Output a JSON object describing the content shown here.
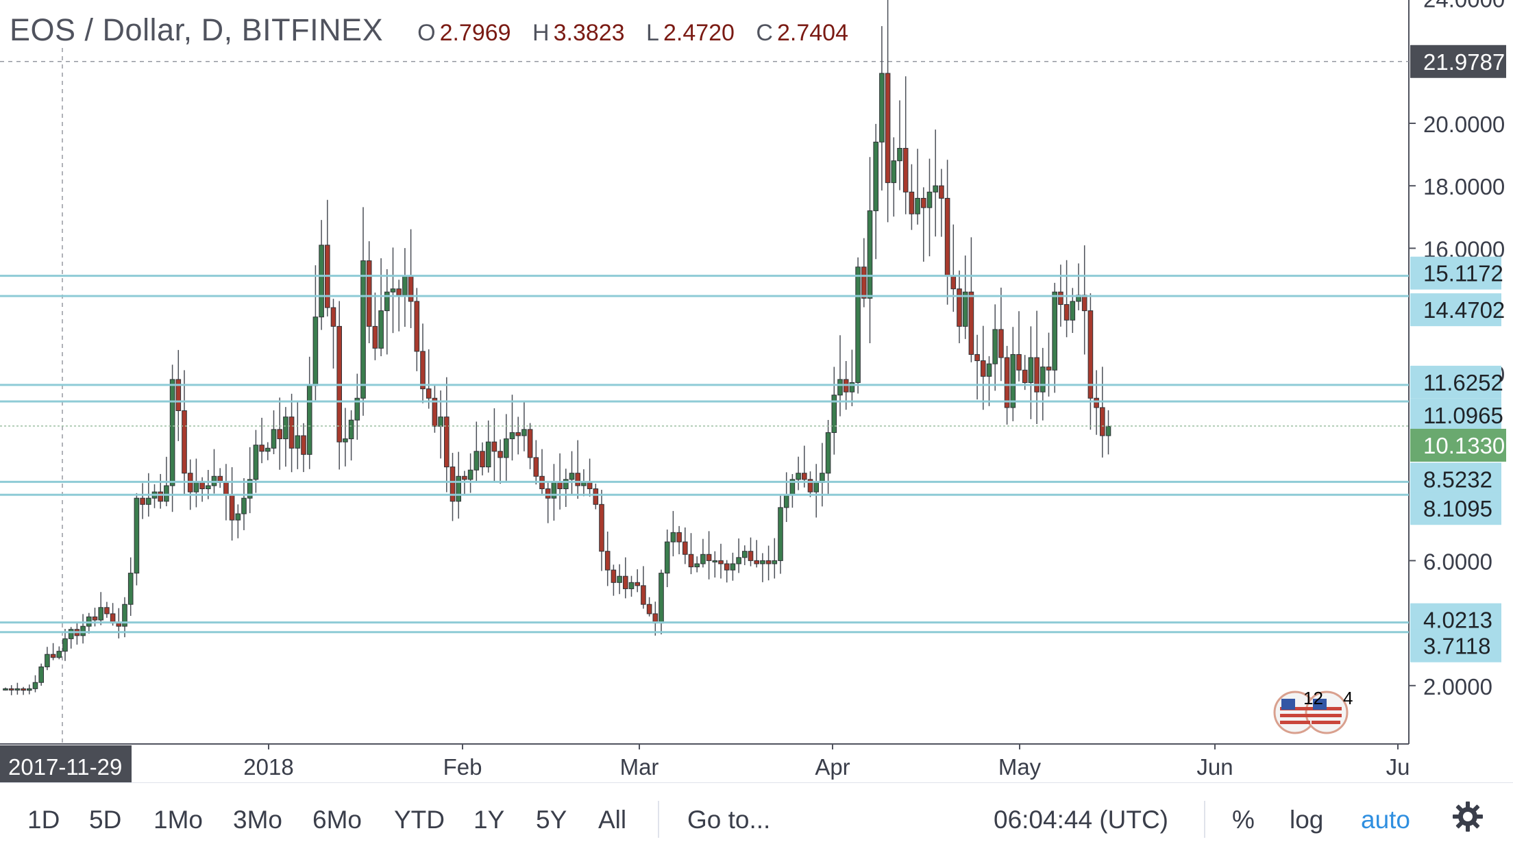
{
  "symbol": "EOS / Dollar, D, BITFINEX",
  "ohlc": [
    {
      "key": "O",
      "value": "2.7969"
    },
    {
      "key": "H",
      "value": "3.3823"
    },
    {
      "key": "L",
      "value": "2.4720"
    },
    {
      "key": "C",
      "value": "2.7404"
    }
  ],
  "price_axis": {
    "ticks": [
      "24.0000",
      "20.0000",
      "18.0000",
      "16.0000",
      "6.0000",
      "2.0000"
    ],
    "partially_hidden_tick": "12.0000",
    "crosshair_label": "21.9787",
    "current_price_label": "10.1330"
  },
  "horizontal_lines": [
    "15.1172",
    "14.4702",
    "11.6252",
    "11.0965",
    "8.5232",
    "8.1095",
    "4.0213",
    "3.7118"
  ],
  "time_axis": {
    "labels": [
      "2018",
      "Feb",
      "Mar",
      "Apr",
      "May",
      "Jun",
      "Ju"
    ],
    "crosshair_date": "2017-11-29"
  },
  "event_badges": {
    "count_a": "12",
    "count_b": "4"
  },
  "toolbar": {
    "ranges": [
      "1D",
      "5D",
      "1Mo",
      "3Mo",
      "6Mo",
      "YTD",
      "1Y",
      "5Y",
      "All"
    ],
    "goto": "Go to...",
    "time": "06:04:44 (UTC)",
    "percent": "%",
    "log": "log",
    "auto": "auto"
  },
  "colors": {
    "up_candle": "#3b7d4e",
    "down_candle": "#a83a2d",
    "level_line": "#8ecbd6",
    "level_label_bg": "#a9dcea",
    "crosshair_label_bg": "#4a4d55",
    "current_price_bg": "#6aa96f",
    "accent": "#2f8fe0"
  },
  "chart_data": {
    "type": "candlestick",
    "ylim": [
      0,
      24
    ],
    "y_ticks": [
      2,
      6,
      12,
      16,
      18,
      20,
      24
    ],
    "levels": [
      15.1172,
      14.4702,
      11.6252,
      11.0965,
      8.5232,
      8.1095,
      4.0213,
      3.7118
    ],
    "current_price": 10.133,
    "crosshair_price": 21.9787,
    "x_labels": [
      "2018",
      "Feb",
      "Mar",
      "Apr",
      "May",
      "Jun",
      "Ju"
    ],
    "start_date": "2017-11-29",
    "closes": [
      1.9,
      1.88,
      1.9,
      1.85,
      1.9,
      2.1,
      2.6,
      3.0,
      2.9,
      3.1,
      3.5,
      3.8,
      3.6,
      3.9,
      4.2,
      4.1,
      4.5,
      4.3,
      4.0,
      3.9,
      4.6,
      5.6,
      8.0,
      7.8,
      8.0,
      8.2,
      7.9,
      8.4,
      11.8,
      10.8,
      8.8,
      8.2,
      8.5,
      8.3,
      8.4,
      8.7,
      8.5,
      8.1,
      7.3,
      7.5,
      8.0,
      8.6,
      9.7,
      9.5,
      9.6,
      10.2,
      9.9,
      10.6,
      9.6,
      10.0,
      9.4,
      11.6,
      13.8,
      16.1,
      14.1,
      13.5,
      9.8,
      9.9,
      10.5,
      11.2,
      15.6,
      13.5,
      12.8,
      14.0,
      14.6,
      14.7,
      14.5,
      15.1,
      14.3,
      12.7,
      11.5,
      11.2,
      10.3,
      10.6,
      9.0,
      7.9,
      8.7,
      8.6,
      8.9,
      9.5,
      9.0,
      9.8,
      9.5,
      9.3,
      9.9,
      10.1,
      10.0,
      10.2,
      9.3,
      8.7,
      8.3,
      8.0,
      8.5,
      8.3,
      8.6,
      8.8,
      8.4,
      8.5,
      8.3,
      7.8,
      6.3,
      5.7,
      5.3,
      5.5,
      5.1,
      5.3,
      5.2,
      4.6,
      4.3,
      4.0,
      5.6,
      6.6,
      6.9,
      6.6,
      6.2,
      5.8,
      5.9,
      6.2,
      6.0,
      6.0,
      5.9,
      5.7,
      5.9,
      6.1,
      6.3,
      6.0,
      5.9,
      6.0,
      5.9,
      6.0,
      7.7,
      8.1,
      8.6,
      8.8,
      8.6,
      8.2,
      8.5,
      8.8,
      10.1,
      11.3,
      11.8,
      11.4,
      11.7,
      15.4,
      14.4,
      17.2,
      19.4,
      21.6,
      18.1,
      18.8,
      19.2,
      17.8,
      17.1,
      17.6,
      17.3,
      17.8,
      18.0,
      17.6,
      15.1,
      14.7,
      13.5,
      14.6,
      12.6,
      12.4,
      11.9,
      12.3,
      13.4,
      12.5,
      10.9,
      12.6,
      12.1,
      11.7,
      12.5,
      11.4,
      12.2,
      12.1,
      14.6,
      14.2,
      13.7,
      14.3,
      14.5,
      14.0,
      11.2,
      10.9,
      10.0,
      10.3
    ],
    "ohlc_last": {
      "open": 2.7969,
      "high": 3.3823,
      "low": 2.472,
      "close": 2.7404
    }
  }
}
